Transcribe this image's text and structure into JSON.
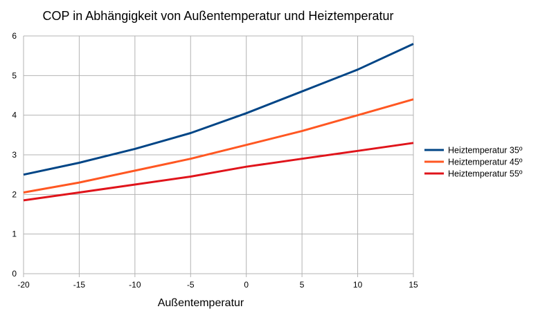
{
  "chart_data": {
    "type": "line",
    "title": "COP in Abhängigkeit von Außentemperatur und Heiztemperatur",
    "xlabel": "Außentemperatur",
    "ylabel": "",
    "x": [
      -20,
      -15,
      -10,
      -5,
      0,
      5,
      10,
      15
    ],
    "xlim": [
      -20,
      15
    ],
    "ylim": [
      0,
      6
    ],
    "x_ticks": [
      "-20",
      "-15",
      "-10",
      "-5",
      "0",
      "5",
      "10",
      "15"
    ],
    "y_ticks": [
      "0",
      "1",
      "2",
      "3",
      "4",
      "5",
      "6"
    ],
    "grid": true,
    "legend_position": "right",
    "series": [
      {
        "name": "Heiztemperatur 35º",
        "color": "#004586",
        "values": [
          2.5,
          2.8,
          3.15,
          3.55,
          4.05,
          4.6,
          5.15,
          5.8
        ]
      },
      {
        "name": "Heiztemperatur 45º",
        "color": "#ff5722",
        "values": [
          2.05,
          2.3,
          2.6,
          2.9,
          3.25,
          3.6,
          4.0,
          4.4
        ]
      },
      {
        "name": "Heiztemperatur 55º",
        "color": "#e0141b",
        "values": [
          1.85,
          2.05,
          2.25,
          2.45,
          2.7,
          2.9,
          3.1,
          3.3
        ]
      }
    ]
  }
}
